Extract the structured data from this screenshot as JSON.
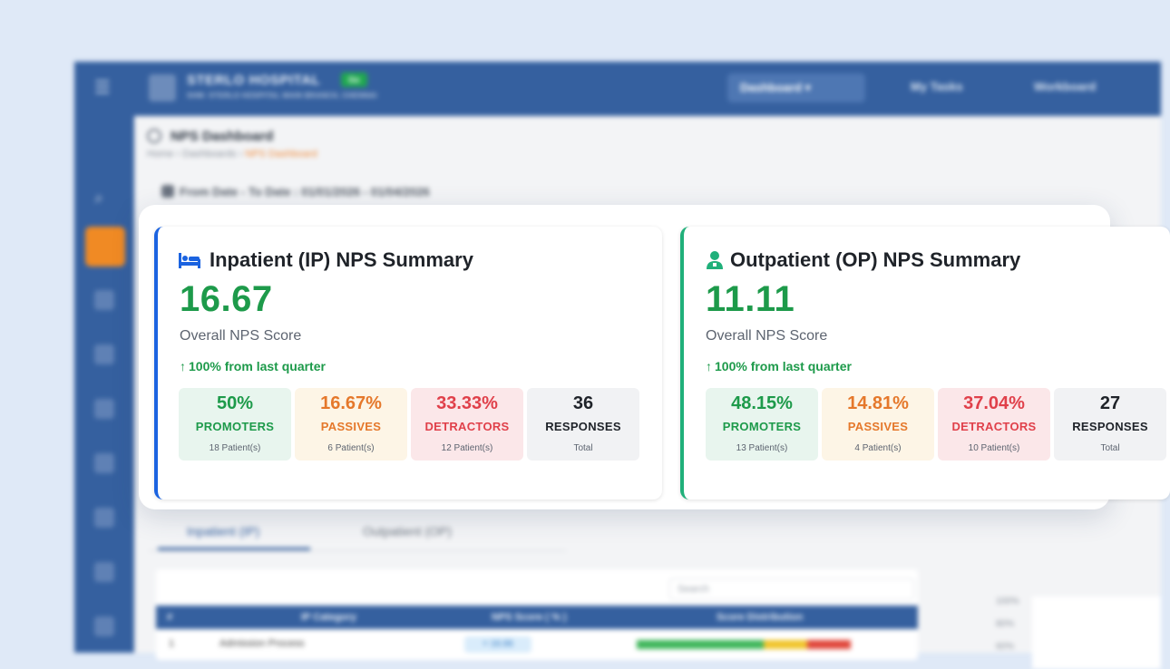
{
  "app": {
    "hospital_name": "STERLO HOSPITAL",
    "hospital_badge": "Go",
    "hospital_branch": "SHM: STERLO HOSPITAL MAIN BRANCH, CHENNAI",
    "nav": {
      "dashboard": "Dashboard ▾",
      "my_tasks": "My Tasks",
      "workboard": "Workboard"
    }
  },
  "page": {
    "title": "NPS Dashboard",
    "breadcrumb": [
      "Home",
      "Dashboards",
      "NPS Dashboard"
    ],
    "date_range": "From Date - To Date : 01/01/2026 - 01/04/2026"
  },
  "tabs": [
    "Inpatient (IP)",
    "Outpatient (OP)"
  ],
  "table": {
    "search_placeholder": "Search",
    "columns": [
      "#",
      "IP Category",
      "NPS Score ( % )",
      "Score Distribution"
    ],
    "first_row": {
      "index": "1",
      "category": "Admission Process",
      "score": "+ 16.66"
    }
  },
  "chart_axis": [
    "100%",
    "80%",
    "60%"
  ],
  "ip": {
    "title": "Inpatient (IP) NPS Summary",
    "score": "16.67",
    "score_label": "Overall NPS Score",
    "trend": "100% from last quarter",
    "stats": [
      {
        "pct": "50%",
        "label": "PROMOTERS",
        "sub": "18 Patient(s)"
      },
      {
        "pct": "16.67%",
        "label": "PASSIVES",
        "sub": "6 Patient(s)"
      },
      {
        "pct": "33.33%",
        "label": "DETRACTORS",
        "sub": "12 Patient(s)"
      },
      {
        "pct": "36",
        "label": "RESPONSES",
        "sub": "Total"
      }
    ]
  },
  "op": {
    "title": "Outpatient (OP) NPS Summary",
    "score": "11.11",
    "score_label": "Overall NPS Score",
    "trend": "100% from last quarter",
    "stats": [
      {
        "pct": "48.15%",
        "label": "PROMOTERS",
        "sub": "13 Patient(s)"
      },
      {
        "pct": "14.81%",
        "label": "PASSIVES",
        "sub": "4 Patient(s)"
      },
      {
        "pct": "37.04%",
        "label": "DETRACTORS",
        "sub": "10 Patient(s)"
      },
      {
        "pct": "27",
        "label": "RESPONSES",
        "sub": "Total"
      }
    ]
  },
  "colors": {
    "primary": "#35609f",
    "ip_accent": "#1b63e0",
    "op_accent": "#20b07a",
    "promoter": "#1d9a4a",
    "passive": "#e5782b",
    "detractor": "#e0404a"
  }
}
